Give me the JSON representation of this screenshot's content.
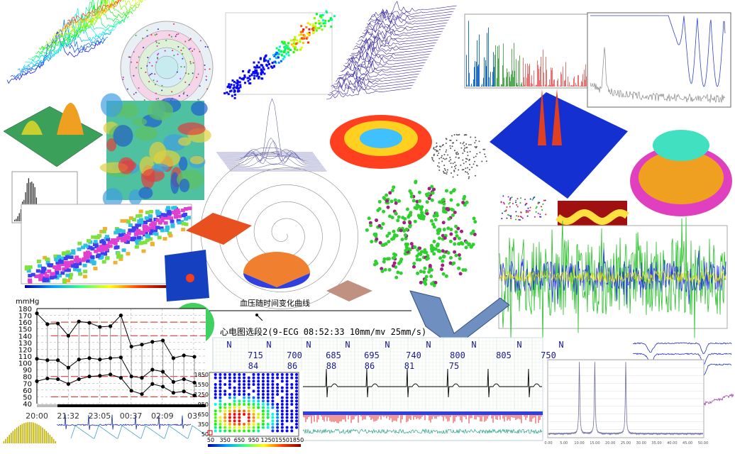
{
  "captions": {
    "bp_caption": "血压随时间变化曲线",
    "ecg_title": "心电图选段2(9-ECG  08:52:33 10mm/mv  25mm/s)"
  },
  "colors": {
    "ecg_text": "#1a1a8c",
    "bp_ref": "#cc2222",
    "grid": "#999999"
  },
  "chart_data": [
    {
      "type": "line",
      "ylabel": "mmHg",
      "ylim": [
        40,
        180
      ],
      "yticks": [
        "180",
        "170",
        "160",
        "150",
        "140",
        "130",
        "120",
        "110",
        "100",
        "90",
        "80",
        "70",
        "60",
        "50",
        "40"
      ],
      "xticks": [
        "20:00",
        "21:32",
        "23:05",
        "00:37",
        "02:09",
        "03:"
      ],
      "reference_lines": [
        160,
        140,
        80,
        50
      ],
      "grid": true,
      "series": [
        {
          "values": [
            173,
            157,
            158,
            140,
            161,
            159,
            153,
            154,
            170,
            124,
            127,
            131,
            133,
            107,
            111,
            109
          ]
        },
        {
          "values": [
            106,
            104,
            104,
            93,
            105,
            107,
            105,
            107,
            108,
            80,
            78,
            90,
            87,
            72,
            76,
            71
          ]
        },
        {
          "values": [
            73,
            77,
            76,
            69,
            76,
            80,
            81,
            83,
            78,
            59,
            54,
            69,
            65,
            56,
            58,
            52
          ]
        }
      ]
    },
    {
      "type": "line",
      "beat_labels": [
        "N",
        "N",
        "N",
        "N",
        "N",
        "N",
        "N",
        "N",
        "N"
      ],
      "rr_intervals": [
        "715",
        "700",
        "685",
        "695",
        "740",
        "800",
        "805",
        "750"
      ],
      "heart_rates": [
        "84",
        "86",
        "88",
        "86",
        "81",
        "75"
      ]
    },
    {
      "type": "scatter",
      "xticks": [
        "50",
        "350",
        "650",
        "950",
        "1250",
        "1550",
        "1850"
      ],
      "yticks": [
        "1850",
        "1550",
        "1250",
        "950",
        "650",
        "350",
        "50"
      ],
      "xlim": [
        50,
        1850
      ],
      "ylim": [
        50,
        1850
      ]
    },
    {
      "type": "line",
      "xticks": [
        "0.00",
        "5.00",
        "10.00",
        "15.00",
        "20.00",
        "25.00",
        "30.00",
        "35.00",
        "40.00",
        "45.00",
        "50.00"
      ],
      "peaks_x": [
        10,
        15,
        25
      ],
      "ylim": [
        0,
        100
      ]
    }
  ]
}
